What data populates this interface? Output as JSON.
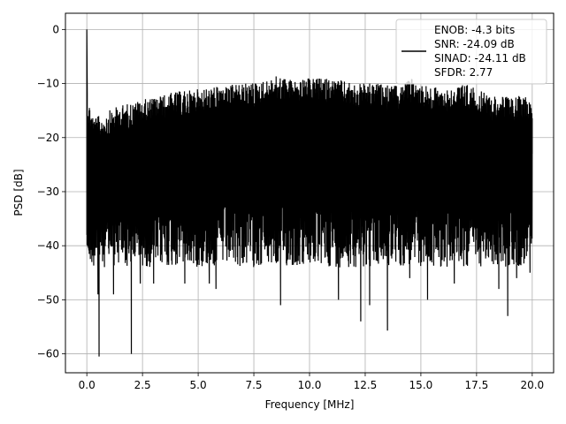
{
  "chart_data": {
    "type": "line",
    "title": "",
    "xlabel": "Frequency [MHz]",
    "ylabel": "PSD [dB]",
    "xlim": [
      -0.96,
      20.96
    ],
    "ylim": [
      -63.5,
      3.0
    ],
    "grid": true,
    "x_ticks": [
      0.0,
      2.5,
      5.0,
      7.5,
      10.0,
      12.5,
      15.0,
      17.5,
      20.0
    ],
    "x_tick_labels": [
      "0.0",
      "2.5",
      "5.0",
      "7.5",
      "10.0",
      "12.5",
      "15.0",
      "17.5",
      "20.0"
    ],
    "y_ticks": [
      0,
      -10,
      -20,
      -30,
      -40,
      -50,
      -60
    ],
    "y_tick_labels": [
      "0",
      "−10",
      "−20",
      "−30",
      "−40",
      "−50",
      "−60"
    ],
    "legend": {
      "position": "top-right",
      "entries": [
        "ENOB: -4.3 bits",
        "SNR: -24.09 dB",
        "SINAD: -24.11 dB",
        "SFDR: 2.77"
      ]
    },
    "series": [
      {
        "color": "#000000",
        "x_start": 0.0,
        "x_end": 20.0,
        "peak": {
          "x": 0.0,
          "y": 0.0
        },
        "upper_envelope": [
          [
            0.0,
            -12
          ],
          [
            0.3,
            -16
          ],
          [
            0.6,
            -16
          ],
          [
            1.0,
            -15
          ],
          [
            1.5,
            -14
          ],
          [
            2.0,
            -13.5
          ],
          [
            2.5,
            -13
          ],
          [
            3.0,
            -12.5
          ],
          [
            4.0,
            -11.5
          ],
          [
            5.0,
            -11
          ],
          [
            6.0,
            -10.5
          ],
          [
            7.0,
            -10
          ],
          [
            8.0,
            -9.5
          ],
          [
            8.6,
            -8.5
          ],
          [
            9.5,
            -9.5
          ],
          [
            10.0,
            -9
          ],
          [
            11.0,
            -9
          ],
          [
            12.0,
            -10
          ],
          [
            13.0,
            -10
          ],
          [
            14.0,
            -10.5
          ],
          [
            14.6,
            -9
          ],
          [
            15.0,
            -10
          ],
          [
            16.0,
            -11
          ],
          [
            17.0,
            -10
          ],
          [
            18.0,
            -12
          ],
          [
            19.0,
            -12.5
          ],
          [
            20.0,
            -12
          ]
        ],
        "dips": [
          [
            0.5,
            -49
          ],
          [
            0.55,
            -60.5
          ],
          [
            1.2,
            -49
          ],
          [
            2.0,
            -60
          ],
          [
            2.4,
            -47
          ],
          [
            3.0,
            -47
          ],
          [
            4.4,
            -47
          ],
          [
            5.5,
            -47
          ],
          [
            5.8,
            -48
          ],
          [
            8.7,
            -51
          ],
          [
            11.3,
            -50
          ],
          [
            12.3,
            -54
          ],
          [
            12.7,
            -51
          ],
          [
            13.5,
            -55.7
          ],
          [
            14.5,
            -46
          ],
          [
            15.3,
            -50
          ],
          [
            16.5,
            -47
          ],
          [
            18.5,
            -48
          ],
          [
            18.9,
            -53
          ],
          [
            19.3,
            -46
          ],
          [
            19.9,
            -45
          ]
        ]
      }
    ]
  }
}
